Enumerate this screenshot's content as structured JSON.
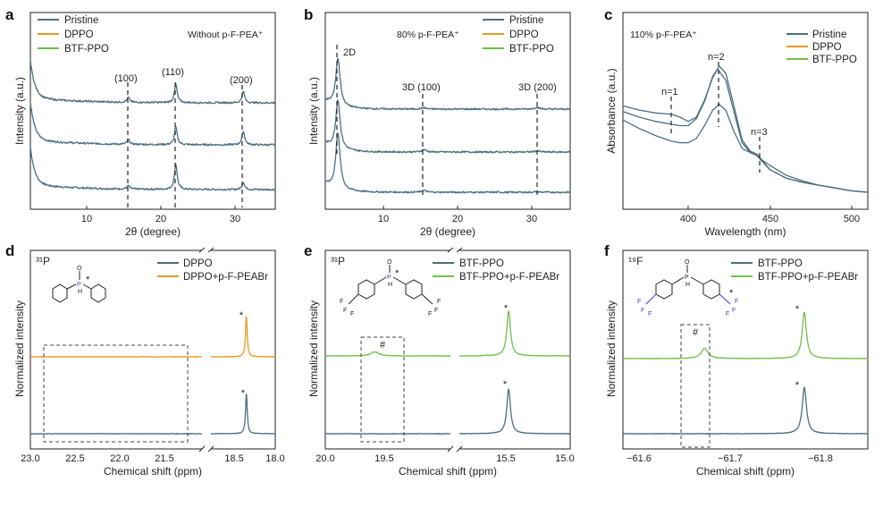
{
  "colors": {
    "pristine": "#4a6f80",
    "dppo": "#e89a1e",
    "btf": "#6fbf4a",
    "blue_mol": "#3a3ad0",
    "axis": "#222222"
  },
  "panels": {
    "a": {
      "letter": "a",
      "condition": "Without p-F-PEA⁺",
      "xlabel": "2θ (degree)",
      "ylabel": "Intensity (a.u.)",
      "legend": [
        "Pristine",
        "DPPO",
        "BTF-PPO"
      ],
      "peaks": [
        "(100)",
        "(110)",
        "(200)"
      ],
      "xticks": [
        "10",
        "20",
        "30"
      ]
    },
    "b": {
      "letter": "b",
      "condition": "80% p-F-PEA⁺",
      "xlabel": "2θ (degree)",
      "ylabel": "Intensity (a.u.)",
      "legend": [
        "Pristine",
        "DPPO",
        "BTF-PPO"
      ],
      "peaks": [
        "2D",
        "3D (100)",
        "3D (200)"
      ],
      "xticks": [
        "10",
        "20",
        "30"
      ]
    },
    "c": {
      "letter": "c",
      "condition": "110% p-F-PEA⁺",
      "xlabel": "Wavelength (nm)",
      "ylabel": "Absorbance (a.u.)",
      "legend": [
        "Pristine",
        "DPPO",
        "BTF-PPO"
      ],
      "peaks": [
        "n=1",
        "n=2",
        "n=3"
      ],
      "xticks": [
        "400",
        "450",
        "500"
      ]
    },
    "d": {
      "letter": "d",
      "nucleus": "³¹P",
      "xlabel": "Chemical shift (ppm)",
      "ylabel": "Normalized intensity",
      "legend": [
        "DPPO",
        "DPPO+p-F-PEABr"
      ],
      "xticks": [
        "23.0",
        "22.5",
        "22.0",
        "21.5",
        "18.5",
        "18.0"
      ],
      "star": "*",
      "mol_atoms": [
        "O",
        "P",
        "H"
      ]
    },
    "e": {
      "letter": "e",
      "nucleus": "³¹P",
      "xlabel": "Chemical shift (ppm)",
      "ylabel": "Normalized intensity",
      "legend": [
        "BTF-PPO",
        "BTF-PPO+p-F-PEABr"
      ],
      "xticks": [
        "20.0",
        "19.5",
        "15.5",
        "15.0"
      ],
      "star": "*",
      "hash": "#",
      "mol_atoms": [
        "O",
        "P",
        "H",
        "F"
      ]
    },
    "f": {
      "letter": "f",
      "nucleus": "¹⁹F",
      "xlabel": "Chemical shift (ppm)",
      "ylabel": "Normalized intensity",
      "legend": [
        "BTF-PPO",
        "BTF-PPO+p-F-PEABr"
      ],
      "xticks": [
        "−61.6",
        "−61.7",
        "−61.8"
      ],
      "star": "*",
      "hash": "#",
      "mol_atoms": [
        "O",
        "P",
        "H",
        "F"
      ]
    }
  },
  "chart_data": [
    {
      "type": "line",
      "panel": "a",
      "title": "Without p-F-PEA⁺",
      "xlabel": "2θ (degree)",
      "ylabel": "Intensity (a.u.)",
      "xlim": [
        2,
        35
      ],
      "peak_positions": [
        15.2,
        21.6,
        30.7
      ],
      "series": [
        {
          "name": "Pristine",
          "offset": 0,
          "peak_heights": [
            0.8,
            6.4,
            1.8
          ]
        },
        {
          "name": "DPPO",
          "offset": 1,
          "peak_heights": [
            1.2,
            4.4,
            3.4
          ]
        },
        {
          "name": "BTF-PPO",
          "offset": 2,
          "peak_heights": [
            1.2,
            4.6,
            2.8
          ]
        }
      ]
    },
    {
      "type": "line",
      "panel": "b",
      "title": "80% p-F-PEA⁺",
      "xlabel": "2θ (degree)",
      "ylabel": "Intensity (a.u.)",
      "xlim": [
        2,
        35
      ],
      "peak_positions": [
        3.7,
        15.3,
        30.5
      ],
      "series": [
        {
          "name": "Pristine",
          "offset": 0,
          "peak_heights": [
            9.0,
            0.3,
            0.1
          ]
        },
        {
          "name": "DPPO",
          "offset": 1,
          "peak_heights": [
            7.8,
            0.4,
            0.2
          ]
        },
        {
          "name": "BTF-PPO",
          "offset": 2,
          "peak_heights": [
            7.6,
            0.2,
            0.3
          ]
        }
      ]
    },
    {
      "type": "line",
      "panel": "c",
      "title": "110% p-F-PEA⁺",
      "xlabel": "Wavelength (nm)",
      "ylabel": "Absorbance (a.u.)",
      "xlim": [
        360,
        510
      ],
      "series": [
        {
          "name": "Pristine",
          "x": [
            360,
            370,
            380,
            390,
            395,
            400,
            405,
            410,
            415,
            419,
            423,
            428,
            433,
            438,
            442,
            445,
            450,
            460,
            470,
            480,
            490,
            500,
            510
          ],
          "y": [
            0.72,
            0.69,
            0.67,
            0.66,
            0.64,
            0.61,
            0.64,
            0.76,
            0.92,
            1.0,
            0.95,
            0.72,
            0.48,
            0.4,
            0.38,
            0.34,
            0.27,
            0.21,
            0.18,
            0.16,
            0.14,
            0.12,
            0.11
          ]
        },
        {
          "name": "DPPO",
          "x": [
            360,
            370,
            380,
            390,
            395,
            400,
            405,
            410,
            415,
            418,
            423,
            428,
            433,
            438,
            442,
            445,
            450,
            460,
            470,
            480,
            490,
            500,
            510
          ],
          "y": [
            0.68,
            0.64,
            0.61,
            0.59,
            0.58,
            0.58,
            0.63,
            0.75,
            0.93,
            0.98,
            0.9,
            0.68,
            0.46,
            0.39,
            0.37,
            0.33,
            0.27,
            0.21,
            0.18,
            0.16,
            0.14,
            0.12,
            0.11
          ]
        },
        {
          "name": "BTF-PPO",
          "x": [
            360,
            370,
            380,
            390,
            395,
            400,
            405,
            410,
            415,
            419,
            423,
            428,
            433,
            438,
            442,
            445,
            450,
            460,
            470,
            480,
            490,
            500,
            510
          ],
          "y": [
            0.62,
            0.56,
            0.51,
            0.47,
            0.46,
            0.46,
            0.49,
            0.58,
            0.69,
            0.73,
            0.69,
            0.54,
            0.42,
            0.39,
            0.37,
            0.34,
            0.3,
            0.23,
            0.19,
            0.16,
            0.14,
            0.12,
            0.11
          ]
        }
      ]
    },
    {
      "type": "line",
      "panel": "d",
      "xlabel": "Chemical shift (ppm)",
      "ylabel": "Normalized intensity",
      "x_break": [
        21.1,
        18.8
      ],
      "series": [
        {
          "name": "DPPO",
          "peak_ppm": 18.35,
          "peak_height": 1.0,
          "offset": 0
        },
        {
          "name": "DPPO+p-F-PEABr",
          "peak_ppm": 18.35,
          "peak_height": 1.0,
          "offset": 1
        }
      ]
    },
    {
      "type": "line",
      "panel": "e",
      "xlabel": "Chemical shift (ppm)",
      "ylabel": "Normalized intensity",
      "x_break": [
        19.3,
        15.7
      ],
      "series": [
        {
          "name": "BTF-PPO",
          "peak_ppm": 15.5,
          "peak_height": 1.0,
          "offset": 0
        },
        {
          "name": "BTF-PPO+p-F-PEABr",
          "peak_ppm": 15.5,
          "peak_height": 1.0,
          "offset": 1,
          "minor_peak_ppm": 19.58,
          "minor_peak_height": 0.09
        }
      ]
    },
    {
      "type": "line",
      "panel": "f",
      "xlabel": "Chemical shift (ppm)",
      "ylabel": "Normalized intensity",
      "xlim": [
        -61.56,
        -61.83
      ],
      "series": [
        {
          "name": "BTF-PPO",
          "peak_ppm": -61.76,
          "peak_height": 1.0,
          "offset": 0
        },
        {
          "name": "BTF-PPO+p-F-PEABr",
          "peak_ppm": -61.76,
          "peak_height": 1.0,
          "offset": 1,
          "minor_peak_ppm": -61.65,
          "minor_peak_height": 0.22
        }
      ]
    }
  ]
}
